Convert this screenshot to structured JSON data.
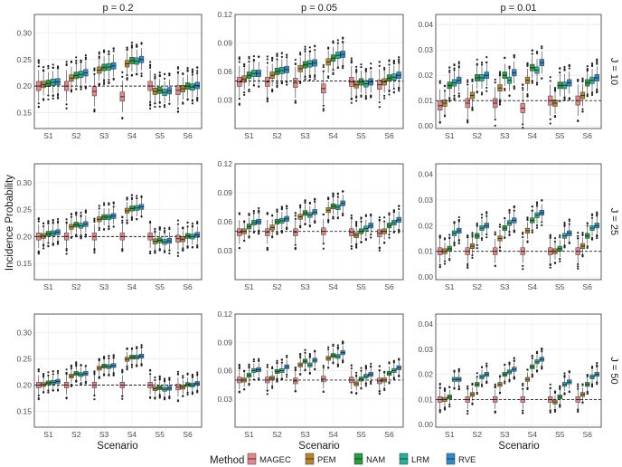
{
  "chart_data": {
    "type": "boxplot",
    "y_axis_title": "Incidence Probability",
    "x_axis_title": "Scenario",
    "column_strips": [
      "p = 0.2",
      "p = 0.05",
      "p = 0.01"
    ],
    "row_strips": [
      "J = 10",
      "J = 25",
      "J = 50"
    ],
    "scenarios": [
      "S1",
      "S2",
      "S3",
      "S4",
      "S5",
      "S6"
    ],
    "legend_title": "Method",
    "methods": [
      {
        "name": "MAGEC",
        "color": "#E7868A"
      },
      {
        "name": "PEM",
        "color": "#B8862A"
      },
      {
        "name": "NAM",
        "color": "#21A13A"
      },
      {
        "name": "LRM",
        "color": "#21B39B"
      },
      {
        "name": "RVE",
        "color": "#2A8CCF"
      }
    ],
    "reference_lines": [
      0.2,
      0.05,
      0.01
    ],
    "y_ranges": [
      [
        0.12,
        0.335
      ],
      [
        0.0,
        0.12
      ],
      [
        -0.001,
        0.044
      ]
    ],
    "y_ticks": [
      [
        "0.15",
        "0.20",
        "0.25",
        "0.30"
      ],
      [
        "0.03",
        "0.06",
        "0.09",
        "0.12"
      ],
      [
        "0.00",
        "0.01",
        "0.02",
        "0.03",
        "0.04"
      ]
    ],
    "medians": {
      "p = 0.2": {
        "J = 10": [
          [
            0.2,
            0.203,
            0.205,
            0.207,
            0.208
          ],
          [
            0.2,
            0.215,
            0.22,
            0.222,
            0.225
          ],
          [
            0.19,
            0.23,
            0.235,
            0.236,
            0.238
          ],
          [
            0.18,
            0.242,
            0.248,
            0.247,
            0.25
          ],
          [
            0.2,
            0.19,
            0.192,
            0.188,
            0.191
          ],
          [
            0.192,
            0.195,
            0.2,
            0.198,
            0.201
          ]
        ],
        "J = 25": [
          [
            0.2,
            0.201,
            0.205,
            0.206,
            0.208
          ],
          [
            0.2,
            0.218,
            0.222,
            0.22,
            0.223
          ],
          [
            0.2,
            0.232,
            0.236,
            0.236,
            0.238
          ],
          [
            0.2,
            0.248,
            0.252,
            0.253,
            0.255
          ],
          [
            0.2,
            0.191,
            0.193,
            0.19,
            0.192
          ],
          [
            0.196,
            0.195,
            0.201,
            0.2,
            0.203
          ]
        ],
        "J = 50": [
          [
            0.2,
            0.201,
            0.204,
            0.205,
            0.207
          ],
          [
            0.2,
            0.217,
            0.222,
            0.22,
            0.222
          ],
          [
            0.2,
            0.232,
            0.236,
            0.235,
            0.237
          ],
          [
            0.2,
            0.249,
            0.253,
            0.253,
            0.255
          ],
          [
            0.2,
            0.193,
            0.195,
            0.192,
            0.194
          ],
          [
            0.196,
            0.196,
            0.201,
            0.2,
            0.203
          ]
        ]
      },
      "p = 0.05": {
        "J = 10": [
          [
            0.049,
            0.052,
            0.056,
            0.058,
            0.058
          ],
          [
            0.049,
            0.056,
            0.06,
            0.061,
            0.062
          ],
          [
            0.048,
            0.063,
            0.067,
            0.068,
            0.069
          ],
          [
            0.042,
            0.07,
            0.074,
            0.077,
            0.078
          ],
          [
            0.049,
            0.046,
            0.049,
            0.047,
            0.049
          ],
          [
            0.046,
            0.049,
            0.053,
            0.054,
            0.056
          ]
        ],
        "J = 25": [
          [
            0.049,
            0.05,
            0.055,
            0.059,
            0.06
          ],
          [
            0.049,
            0.054,
            0.06,
            0.061,
            0.063
          ],
          [
            0.049,
            0.065,
            0.069,
            0.067,
            0.07
          ],
          [
            0.05,
            0.072,
            0.076,
            0.075,
            0.079
          ],
          [
            0.049,
            0.046,
            0.05,
            0.053,
            0.056
          ],
          [
            0.048,
            0.05,
            0.056,
            0.059,
            0.062
          ]
        ],
        "J = 50": [
          [
            0.05,
            0.05,
            0.055,
            0.06,
            0.061
          ],
          [
            0.05,
            0.052,
            0.059,
            0.06,
            0.064
          ],
          [
            0.049,
            0.066,
            0.07,
            0.066,
            0.071
          ],
          [
            0.051,
            0.073,
            0.076,
            0.075,
            0.079
          ],
          [
            0.05,
            0.046,
            0.051,
            0.054,
            0.056
          ],
          [
            0.049,
            0.05,
            0.057,
            0.06,
            0.063
          ]
        ]
      },
      "p = 0.01": {
        "J = 10": [
          [
            0.008,
            0.009,
            0.016,
            0.017,
            0.018
          ],
          [
            0.009,
            0.012,
            0.019,
            0.019,
            0.02
          ],
          [
            0.009,
            0.015,
            0.02,
            0.018,
            0.021
          ],
          [
            0.007,
            0.018,
            0.023,
            0.022,
            0.025
          ],
          [
            0.01,
            0.009,
            0.016,
            0.016,
            0.017
          ],
          [
            0.01,
            0.012,
            0.017,
            0.018,
            0.019
          ]
        ],
        "J = 25": [
          [
            0.01,
            0.01,
            0.011,
            0.017,
            0.018
          ],
          [
            0.01,
            0.012,
            0.016,
            0.019,
            0.02
          ],
          [
            0.01,
            0.015,
            0.019,
            0.021,
            0.022
          ],
          [
            0.01,
            0.018,
            0.022,
            0.024,
            0.025
          ],
          [
            0.01,
            0.01,
            0.011,
            0.016,
            0.017
          ],
          [
            0.01,
            0.012,
            0.016,
            0.019,
            0.02
          ]
        ],
        "J = 50": [
          [
            0.01,
            0.01,
            0.011,
            0.018,
            0.018
          ],
          [
            0.01,
            0.012,
            0.016,
            0.019,
            0.02
          ],
          [
            0.01,
            0.016,
            0.02,
            0.021,
            0.022
          ],
          [
            0.01,
            0.018,
            0.023,
            0.025,
            0.026
          ],
          [
            0.01,
            0.009,
            0.011,
            0.016,
            0.017
          ],
          [
            0.01,
            0.012,
            0.016,
            0.019,
            0.02
          ]
        ]
      }
    }
  }
}
